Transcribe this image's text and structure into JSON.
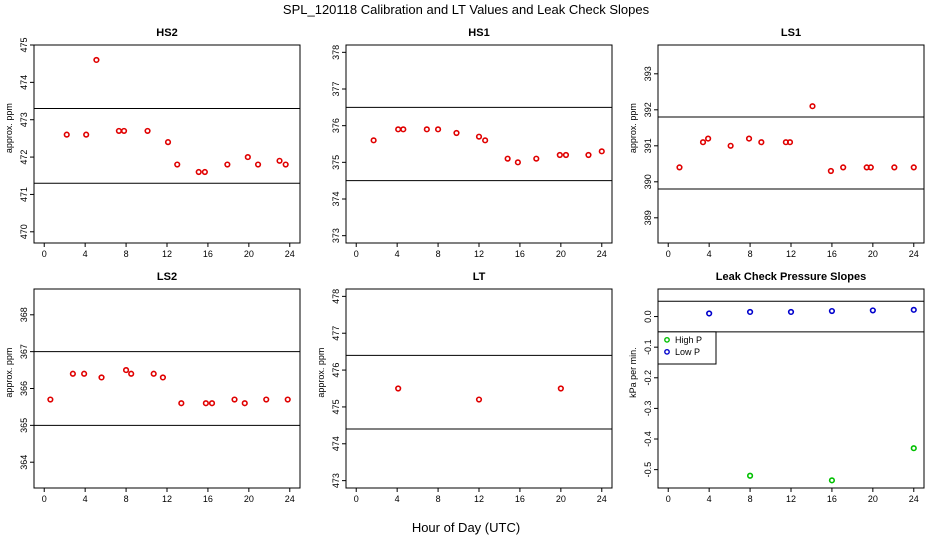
{
  "figure": {
    "title": "SPL_120118  Calibration and LT Values and Leak Check Slopes",
    "xlabel": "Hour of Day (UTC)"
  },
  "colors": {
    "red": "#e00000",
    "green": "#00c000",
    "blue": "#0000cc",
    "axis": "#000000"
  },
  "chart_data": [
    {
      "type": "scatter",
      "title": "HS2",
      "ylabel": "approx. ppm",
      "xlim": [
        -1,
        25
      ],
      "ylim": [
        469.7,
        475.0
      ],
      "xticks": [
        0,
        4,
        8,
        12,
        16,
        20,
        24
      ],
      "yticks": [
        470,
        471,
        472,
        473,
        474,
        475
      ],
      "hlines": [
        473.3,
        471.3
      ],
      "series": [
        {
          "name": "HS2",
          "color": "red",
          "x": [
            2.2,
            4.1,
            5.1,
            7.3,
            7.8,
            10.1,
            12.1,
            13.0,
            15.1,
            15.7,
            17.9,
            19.9,
            20.9,
            23.0,
            23.6
          ],
          "y": [
            472.6,
            472.6,
            474.6,
            472.7,
            472.7,
            472.7,
            472.4,
            471.8,
            471.6,
            471.6,
            471.8,
            472.0,
            471.8,
            471.9,
            471.8
          ]
        }
      ]
    },
    {
      "type": "scatter",
      "title": "HS1",
      "ylabel": "",
      "xlim": [
        -1,
        25
      ],
      "ylim": [
        372.8,
        378.2
      ],
      "xticks": [
        0,
        4,
        8,
        12,
        16,
        20,
        24
      ],
      "yticks": [
        373,
        374,
        375,
        376,
        377,
        378
      ],
      "hlines": [
        376.5,
        374.5
      ],
      "series": [
        {
          "name": "HS1",
          "color": "red",
          "x": [
            1.7,
            4.1,
            4.6,
            6.9,
            8.0,
            9.8,
            12.0,
            12.6,
            14.8,
            15.8,
            17.6,
            19.9,
            20.5,
            22.7,
            24.0
          ],
          "y": [
            375.6,
            375.9,
            375.9,
            375.9,
            375.9,
            375.8,
            375.7,
            375.6,
            375.1,
            375.0,
            375.1,
            375.2,
            375.2,
            375.2,
            375.3
          ]
        }
      ]
    },
    {
      "type": "scatter",
      "title": "LS1",
      "ylabel": "approx. ppm",
      "xlim": [
        -1,
        25
      ],
      "ylim": [
        388.3,
        393.8
      ],
      "xticks": [
        0,
        4,
        8,
        12,
        16,
        20,
        24
      ],
      "yticks": [
        389,
        390,
        391,
        392,
        393
      ],
      "hlines": [
        391.8,
        389.8
      ],
      "series": [
        {
          "name": "LS1",
          "color": "red",
          "x": [
            1.1,
            3.4,
            3.9,
            6.1,
            7.9,
            9.1,
            11.5,
            11.9,
            14.1,
            15.9,
            17.1,
            19.4,
            19.8,
            22.1,
            24.0
          ],
          "y": [
            390.4,
            391.1,
            391.2,
            391.0,
            391.2,
            391.1,
            391.1,
            391.1,
            392.1,
            390.3,
            390.4,
            390.4,
            390.4,
            390.4,
            390.4
          ]
        }
      ]
    },
    {
      "type": "scatter",
      "title": "LS2",
      "ylabel": "approx. ppm",
      "xlim": [
        -1,
        25
      ],
      "ylim": [
        363.3,
        368.7
      ],
      "xticks": [
        0,
        4,
        8,
        12,
        16,
        20,
        24
      ],
      "yticks": [
        364,
        365,
        366,
        367,
        368
      ],
      "hlines": [
        367.0,
        365.0
      ],
      "series": [
        {
          "name": "LS2",
          "color": "red",
          "x": [
            0.6,
            2.8,
            3.9,
            5.6,
            8.0,
            8.5,
            10.7,
            11.6,
            13.4,
            15.8,
            16.4,
            18.6,
            19.6,
            21.7,
            23.8
          ],
          "y": [
            365.7,
            366.4,
            366.4,
            366.3,
            366.5,
            366.4,
            366.4,
            366.3,
            365.6,
            365.6,
            365.6,
            365.7,
            365.6,
            365.7,
            365.7
          ]
        }
      ]
    },
    {
      "type": "scatter",
      "title": "LT",
      "ylabel": "approx. ppm",
      "xlim": [
        -1,
        25
      ],
      "ylim": [
        472.8,
        478.2
      ],
      "xticks": [
        0,
        4,
        8,
        12,
        16,
        20,
        24
      ],
      "yticks": [
        473,
        474,
        475,
        476,
        477,
        478
      ],
      "hlines": [
        476.4,
        474.4
      ],
      "series": [
        {
          "name": "LT",
          "color": "red",
          "x": [
            4.1,
            12.0,
            20.0
          ],
          "y": [
            475.5,
            475.2,
            475.5
          ]
        }
      ]
    },
    {
      "type": "scatter",
      "title": "Leak Check Pressure Slopes",
      "ylabel": "kPa per min.",
      "xlim": [
        -1,
        25
      ],
      "ylim": [
        -0.56,
        0.09
      ],
      "xticks": [
        0,
        4,
        8,
        12,
        16,
        20,
        24
      ],
      "yticks": [
        0.0,
        -0.1,
        -0.2,
        -0.3,
        -0.4,
        -0.5
      ],
      "ytick_labels": [
        "0.0",
        "-0.1",
        "-0.2",
        "-0.3",
        "-0.4",
        "-0.5"
      ],
      "hlines": [
        0.05,
        -0.05
      ],
      "legend": {
        "placement": "left",
        "entries": [
          {
            "label": "High P",
            "color": "green"
          },
          {
            "label": "Low P",
            "color": "blue"
          }
        ]
      },
      "series": [
        {
          "name": "High P",
          "color": "green",
          "x": [
            8.0,
            16.0,
            24.0
          ],
          "y": [
            -0.52,
            -0.535,
            -0.43
          ]
        },
        {
          "name": "Low P",
          "color": "blue",
          "x": [
            4.0,
            8.0,
            12.0,
            16.0,
            20.0,
            24.0
          ],
          "y": [
            0.01,
            0.015,
            0.015,
            0.018,
            0.02,
            0.022
          ]
        }
      ]
    }
  ]
}
